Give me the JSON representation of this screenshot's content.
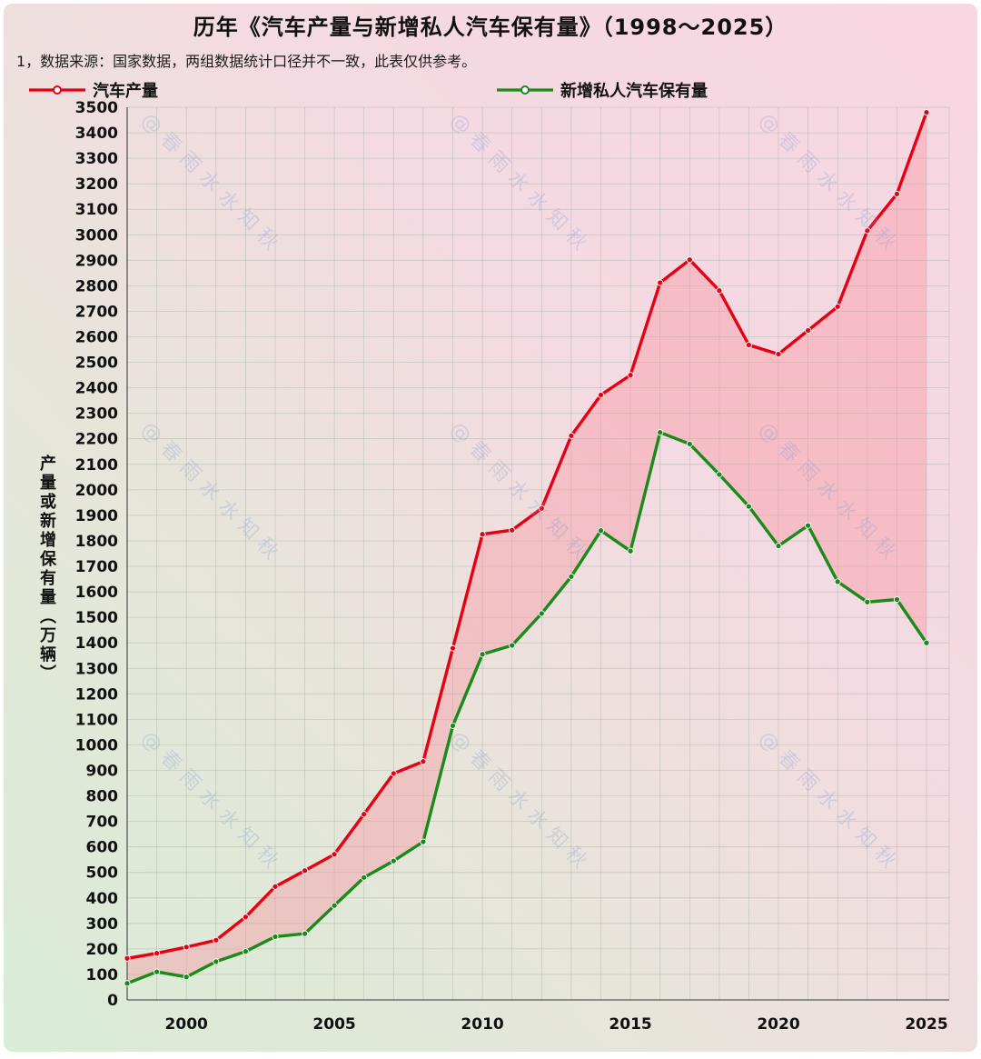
{
  "title": "历年《汽车产量与新增私人汽车保有量》（1998～2025）",
  "note": "1，数据来源：国家数据，两组数据统计口径并不一致，此表仅供参考。",
  "legend": [
    {
      "label": "汽车产量",
      "color": "#e60012"
    },
    {
      "label": "新增私人汽车保有量",
      "color": "#1a8a1a"
    }
  ],
  "watermark": "@春雨水水知秋",
  "chart_data": {
    "type": "line",
    "title": "历年《汽车产量与新增私人汽车保有量》（1998～2025）",
    "xlabel": "",
    "ylabel": "产量或新增保有量（万辆）",
    "ylim": [
      0,
      3500
    ],
    "ytick_step": 100,
    "grid": true,
    "legend_position": "top",
    "x": [
      1998,
      1999,
      2000,
      2001,
      2002,
      2003,
      2004,
      2005,
      2006,
      2007,
      2008,
      2009,
      2010,
      2011,
      2012,
      2013,
      2014,
      2015,
      2016,
      2017,
      2018,
      2019,
      2020,
      2021,
      2022,
      2023,
      2024,
      2025
    ],
    "xtick_labels": [
      2000,
      2005,
      2010,
      2015,
      2020,
      2025
    ],
    "series": [
      {
        "name": "汽车产量",
        "color": "#e60012",
        "values": [
          163,
          183,
          207,
          234,
          325,
          444,
          507,
          571,
          728,
          888,
          935,
          1379,
          1826,
          1842,
          1927,
          2212,
          2372,
          2450,
          2812,
          2902,
          2781,
          2568,
          2532,
          2625,
          2718,
          3016,
          3160,
          3480
        ]
      },
      {
        "name": "新增私人汽车保有量",
        "color": "#1a8a1a",
        "values": [
          65,
          110,
          90,
          150,
          190,
          248,
          260,
          370,
          480,
          545,
          620,
          1075,
          1355,
          1390,
          1515,
          1660,
          1840,
          1760,
          2225,
          2180,
          2060,
          1935,
          1780,
          1860,
          1640,
          1560,
          1570,
          1400
        ]
      }
    ],
    "band_fill": "rgba(247,150,163,0.42)"
  }
}
